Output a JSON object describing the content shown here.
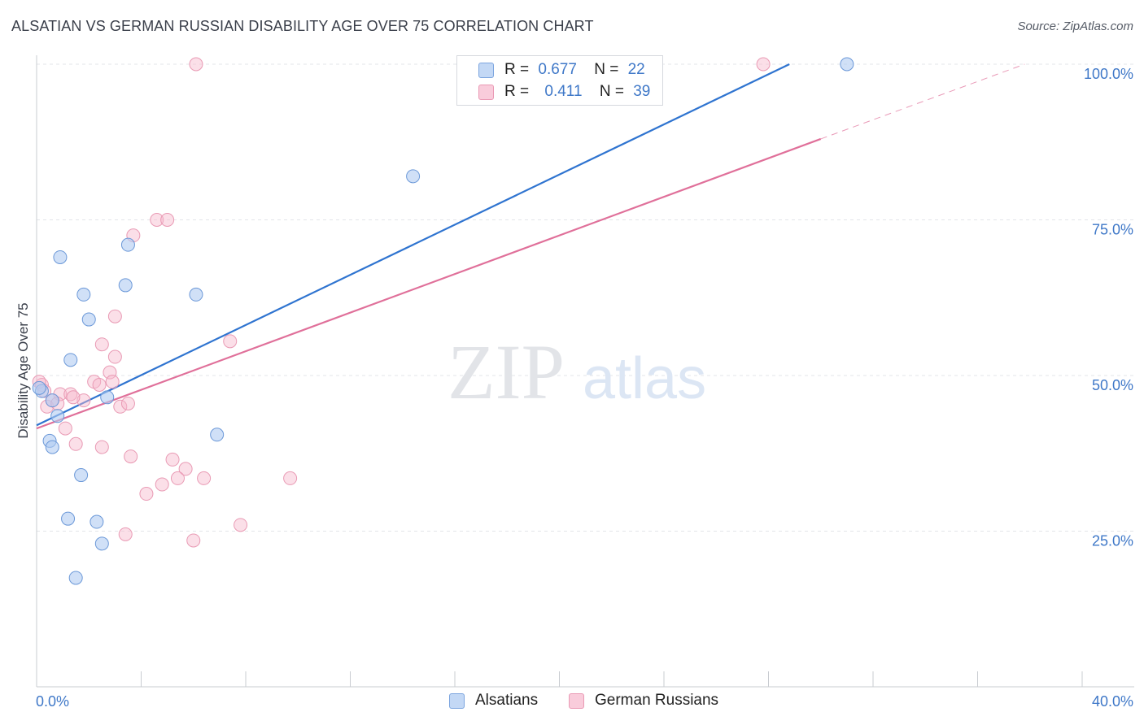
{
  "header": {
    "title": "ALSATIAN VS GERMAN RUSSIAN DISABILITY AGE OVER 75 CORRELATION CHART",
    "source": "Source: ZipAtlas.com"
  },
  "watermark": {
    "zip": "ZIP",
    "atlas": "atlas"
  },
  "legend": {
    "r_label": "R =",
    "n_label": "N =",
    "series": [
      {
        "r": "0.677",
        "n": "22"
      },
      {
        "r": "0.411",
        "n": "39"
      }
    ]
  },
  "chart_data": {
    "type": "scatter",
    "title": "ALSATIAN VS GERMAN RUSSIAN DISABILITY AGE OVER 75 CORRELATION CHART",
    "xlabel": "",
    "ylabel": "Disability Age Over 75",
    "xlim": [
      0,
      40
    ],
    "ylim": [
      0,
      100
    ],
    "x_tick_labels": [
      "0.0%",
      "40.0%"
    ],
    "y_ticks": [
      25,
      50,
      75,
      100
    ],
    "y_tick_labels": [
      "25.0%",
      "50.0%",
      "75.0%",
      "100.0%"
    ],
    "grid": true,
    "colors": {
      "alsatians": "#5b8fd6",
      "german_russians": "#e889a8",
      "alsatians_line": "#2f74d0",
      "german_russians_line": "#e0709a"
    },
    "series": [
      {
        "name": "Alsatians",
        "r": 0.677,
        "n": 22,
        "trend": {
          "x0": 0,
          "y0": 42,
          "x1": 28.8,
          "y1": 100
        },
        "points": [
          [
            0.2,
            47.5
          ],
          [
            0.6,
            46.0
          ],
          [
            0.8,
            43.5
          ],
          [
            0.5,
            39.5
          ],
          [
            0.6,
            38.5
          ],
          [
            1.3,
            52.5
          ],
          [
            0.9,
            69.0
          ],
          [
            1.8,
            63.0
          ],
          [
            2.0,
            59.0
          ],
          [
            1.7,
            34.0
          ],
          [
            1.2,
            27.0
          ],
          [
            2.3,
            26.5
          ],
          [
            2.5,
            23.0
          ],
          [
            1.5,
            17.5
          ],
          [
            2.7,
            46.5
          ],
          [
            3.5,
            71.0
          ],
          [
            3.4,
            64.5
          ],
          [
            6.1,
            63.0
          ],
          [
            6.9,
            40.5
          ],
          [
            14.4,
            82.0
          ],
          [
            31.0,
            100.0
          ],
          [
            0.1,
            48.0
          ]
        ]
      },
      {
        "name": "German Russians",
        "r": 0.411,
        "n": 39,
        "trend": {
          "x0": 0,
          "y0": 41.5,
          "x1": 30.0,
          "y1": 88.0
        },
        "trend_extension": {
          "x0": 30.0,
          "y0": 88.0,
          "x1": 37.8,
          "y1": 100.0
        },
        "points": [
          [
            0.2,
            48.5
          ],
          [
            0.4,
            45.0
          ],
          [
            0.9,
            47.0
          ],
          [
            1.1,
            41.5
          ],
          [
            1.5,
            39.0
          ],
          [
            1.3,
            47.0
          ],
          [
            1.8,
            46.0
          ],
          [
            2.2,
            49.0
          ],
          [
            2.5,
            55.0
          ],
          [
            2.5,
            38.5
          ],
          [
            2.8,
            50.5
          ],
          [
            2.9,
            49.0
          ],
          [
            3.0,
            59.5
          ],
          [
            3.0,
            53.0
          ],
          [
            3.2,
            45.0
          ],
          [
            3.5,
            45.5
          ],
          [
            3.6,
            37.0
          ],
          [
            3.7,
            72.5
          ],
          [
            4.6,
            75.0
          ],
          [
            5.0,
            75.0
          ],
          [
            4.2,
            31.0
          ],
          [
            4.8,
            32.5
          ],
          [
            5.2,
            36.5
          ],
          [
            5.7,
            35.0
          ],
          [
            5.4,
            33.5
          ],
          [
            6.4,
            33.5
          ],
          [
            7.4,
            55.5
          ],
          [
            7.8,
            26.0
          ],
          [
            9.7,
            33.5
          ],
          [
            3.4,
            24.5
          ],
          [
            6.0,
            23.5
          ],
          [
            6.1,
            100.0
          ],
          [
            27.8,
            100.0
          ],
          [
            0.3,
            47.5
          ],
          [
            0.6,
            46.0
          ],
          [
            1.4,
            46.5
          ],
          [
            2.4,
            48.5
          ],
          [
            0.8,
            45.5
          ],
          [
            0.1,
            49.0
          ]
        ]
      }
    ]
  }
}
